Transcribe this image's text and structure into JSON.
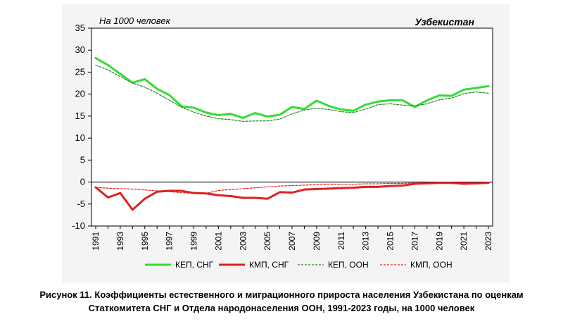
{
  "chart_data": {
    "type": "line",
    "unit_label": "На 1000 человек",
    "country_label": "Узбекистан",
    "x": [
      1991,
      1992,
      1993,
      1994,
      1995,
      1996,
      1997,
      1998,
      1999,
      2000,
      2001,
      2002,
      2003,
      2004,
      2005,
      2006,
      2007,
      2008,
      2009,
      2010,
      2011,
      2012,
      2013,
      2014,
      2015,
      2016,
      2017,
      2018,
      2019,
      2020,
      2021,
      2022,
      2023
    ],
    "x_tick_labels": [
      "1991",
      "1993",
      "1995",
      "1997",
      "1999",
      "2001",
      "2003",
      "2005",
      "2007",
      "2009",
      "2011",
      "2013",
      "2015",
      "2017",
      "2019",
      "2021",
      "2023"
    ],
    "ylim": [
      -10,
      35
    ],
    "y_ticks": [
      35,
      30,
      25,
      20,
      15,
      10,
      5,
      0,
      -5,
      -10
    ],
    "grid": false,
    "legend_position": "bottom",
    "series": [
      {
        "name": "КЕП, СНГ",
        "color": "#33dd33",
        "style": "solid-thick",
        "values": [
          28.2,
          26.6,
          24.6,
          22.6,
          23.4,
          21.2,
          19.8,
          17.2,
          16.9,
          15.8,
          15.2,
          15.5,
          14.6,
          15.7,
          14.9,
          15.3,
          17.1,
          16.6,
          18.5,
          17.3,
          16.5,
          16.2,
          17.6,
          18.3,
          18.6,
          18.6,
          17.1,
          18.6,
          19.7,
          19.6,
          21.0,
          21.4,
          21.8
        ]
      },
      {
        "name": "КМП, СНГ",
        "color": "#dd2222",
        "style": "solid-thick",
        "values": [
          -1.2,
          -3.5,
          -2.5,
          -6.3,
          -3.8,
          -2.2,
          -2.0,
          -2.0,
          -2.5,
          -2.6,
          -3.0,
          -3.2,
          -3.6,
          -3.6,
          -3.8,
          -2.3,
          -2.4,
          -1.7,
          -1.6,
          -1.5,
          -1.4,
          -1.3,
          -1.1,
          -1.1,
          -0.9,
          -0.8,
          -0.4,
          -0.3,
          -0.2,
          -0.2,
          -0.4,
          -0.3,
          -0.2
        ]
      },
      {
        "name": "КЕП, ООН",
        "color": "#228822",
        "style": "dashed-thin",
        "values": [
          26.6,
          25.5,
          24.0,
          22.5,
          21.6,
          20.2,
          18.6,
          17.0,
          15.9,
          15.0,
          14.4,
          14.2,
          13.8,
          13.9,
          13.9,
          14.3,
          15.5,
          16.4,
          16.8,
          16.5,
          16.0,
          15.8,
          16.6,
          17.6,
          17.8,
          17.5,
          17.3,
          17.8,
          18.7,
          19.1,
          20.1,
          20.5,
          20.2
        ]
      },
      {
        "name": "КМП, ООН",
        "color": "#dd2222",
        "style": "dashed-thin",
        "values": [
          -1.2,
          -1.4,
          -1.5,
          -1.6,
          -1.8,
          -2.0,
          -2.2,
          -2.4,
          -2.6,
          -2.6,
          -1.9,
          -1.7,
          -1.5,
          -1.3,
          -1.1,
          -0.9,
          -0.8,
          -0.7,
          -0.6,
          -0.6,
          -0.5,
          -0.5,
          -0.4,
          -0.4,
          -0.3,
          -0.3,
          -0.2,
          -0.2,
          -0.1,
          -0.1,
          -0.1,
          -0.1,
          -0.2
        ]
      }
    ]
  },
  "caption": {
    "line1": "Рисунок 11. Коэффициенты естественного и миграционного прироста населения Узбекистана по оценкам",
    "line2": "Статкомитета СНГ и Отдела народонаселения ООН, 1991-2023 годы, на 1000 человек"
  }
}
